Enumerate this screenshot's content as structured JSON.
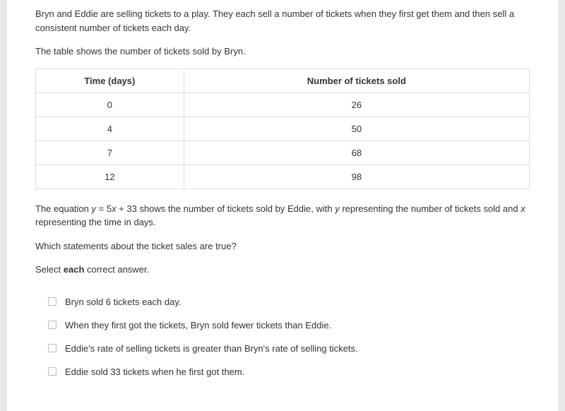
{
  "intro_paragraph": "Bryn and Eddie are selling tickets to a play. They each sell a number of tickets when they first get them and then sell a consistent number of tickets each day.",
  "table_intro": "The table shows the number of tickets sold by Bryn.",
  "table": {
    "headers": {
      "time": "Time (days)",
      "tickets": "Number of tickets sold"
    },
    "rows": [
      {
        "time": "0",
        "tickets": "26"
      },
      {
        "time": "4",
        "tickets": "50"
      },
      {
        "time": "7",
        "tickets": "68"
      },
      {
        "time": "12",
        "tickets": "98"
      }
    ],
    "border_color": "#dddddd",
    "text_color": "#333333",
    "background_color": "#ffffff"
  },
  "equation_text": {
    "p1": "The equation ",
    "var_y1": "y",
    "eq1": " = 5",
    "var_x1": "x",
    "eq2": " + 33 shows the number of tickets sold by Eddie, with ",
    "var_y2": "y",
    "p2": " representing the number of tickets sold and ",
    "var_x2": "x",
    "p3": " representing the time in days."
  },
  "question_prompt": "Which statements about the ticket sales are true?",
  "select_prompt_pre": "Select ",
  "select_prompt_bold": "each",
  "select_prompt_post": " correct answer.",
  "answers": [
    {
      "label": "Bryn sold 6 tickets each day."
    },
    {
      "label": "When they first got the tickets, Bryn sold fewer tickets than Eddie."
    },
    {
      "label": "Eddie's rate of selling tickets is greater than Bryn's rate of selling tickets."
    },
    {
      "label": "Eddie sold 33 tickets when he first got them."
    }
  ],
  "colors": {
    "page_bg": "#e8e8e8",
    "card_bg": "#ffffff",
    "text": "#333333",
    "checkbox_border": "#bbbbbb"
  }
}
